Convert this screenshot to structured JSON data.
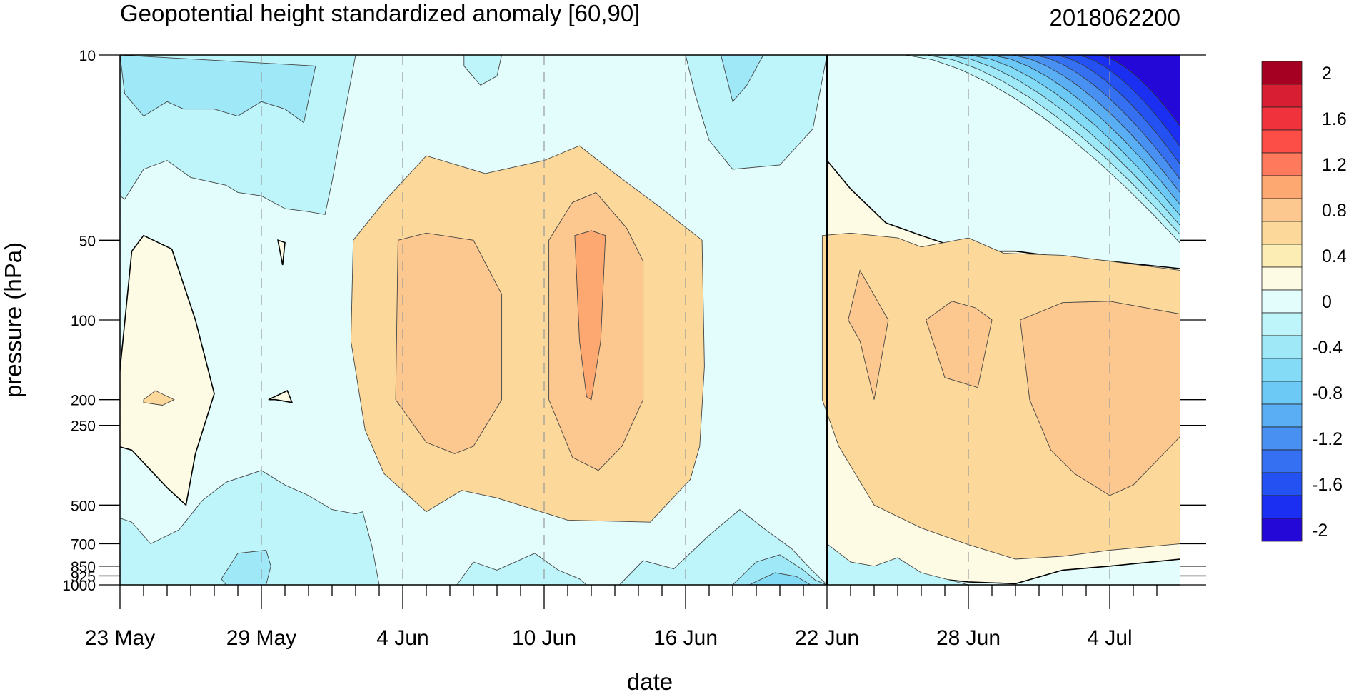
{
  "chart_data": {
    "type": "heatmap",
    "title": "Geopotential height standardized anomaly [60,90]",
    "datestamp": "2018062200",
    "xlabel": "date",
    "ylabel": "pressure (hPa)",
    "x_tick_labels": [
      "23 May",
      "29 May",
      "4 Jun",
      "10 Jun",
      "16 Jun",
      "22 Jun",
      "28 Jun",
      "4 Jul"
    ],
    "x_tick_days": [
      0,
      6,
      12,
      18,
      24,
      30,
      36,
      42
    ],
    "x_range_days": [
      0,
      45
    ],
    "y_ticks": [
      {
        "value": 10,
        "label": "10"
      },
      {
        "value": 50,
        "label": "50"
      },
      {
        "value": 100,
        "label": "100"
      },
      {
        "value": 200,
        "label": "200"
      },
      {
        "value": 250,
        "label": "250"
      },
      {
        "value": 500,
        "label": "500"
      },
      {
        "value": 700,
        "label": "700"
      },
      {
        "value": 850,
        "label": "850"
      },
      {
        "value": 925,
        "label": "925"
      },
      {
        "value": 1000,
        "label": "1000"
      }
    ],
    "y_range": [
      1000,
      10
    ],
    "y_scale": "log",
    "y_reversed": true,
    "analysis_line_day": 30,
    "colorbar": {
      "labels": [
        "2",
        "1.6",
        "1.2",
        "0.8",
        "0.4",
        "0",
        "-0.4",
        "-0.8",
        "-1.2",
        "-1.6",
        "-2"
      ],
      "colors_top_to_bottom": [
        "#a50021",
        "#d81e33",
        "#f0323c",
        "#fc4e47",
        "#ff7a5c",
        "#fda870",
        "#fcc88f",
        "#fcd99a",
        "#fcedb4",
        "#fdfbe3",
        "#e3fdfd",
        "#bdf5fb",
        "#9fe8f8",
        "#84dbf6",
        "#6cc8f4",
        "#5aaef3",
        "#4890f2",
        "#3570f2",
        "#2451f2",
        "#1a2ff2",
        "#2408d8"
      ]
    },
    "regions": [
      {
        "level": 0.4,
        "color": "#fcd99a",
        "points": [
          [
            9.9,
            50
          ],
          [
            11.3,
            35
          ],
          [
            13,
            24
          ],
          [
            15.5,
            28
          ],
          [
            18,
            25
          ],
          [
            19.5,
            22
          ],
          [
            21,
            28
          ],
          [
            23,
            38
          ],
          [
            24.7,
            50
          ],
          [
            24.8,
            150
          ],
          [
            24.6,
            300
          ],
          [
            24.2,
            400
          ],
          [
            22.5,
            580
          ],
          [
            19,
            570
          ],
          [
            16,
            470
          ],
          [
            14.5,
            440
          ],
          [
            13,
            530
          ],
          [
            11.2,
            380
          ],
          [
            10.4,
            260
          ],
          [
            9.8,
            120
          ]
        ]
      },
      {
        "level": 0.6,
        "color": "#fcc88f",
        "points": [
          [
            11.8,
            50
          ],
          [
            13,
            47
          ],
          [
            15,
            50
          ],
          [
            16.2,
            80
          ],
          [
            16.2,
            200
          ],
          [
            15,
            300
          ],
          [
            14.2,
            320
          ],
          [
            13,
            290
          ],
          [
            11.7,
            200
          ]
        ]
      },
      {
        "level": 0.6,
        "color": "#fcc88f",
        "points": [
          [
            18.2,
            50
          ],
          [
            19.2,
            36
          ],
          [
            20.2,
            33
          ],
          [
            21.5,
            45
          ],
          [
            22.2,
            60
          ],
          [
            22.2,
            200
          ],
          [
            21.3,
            300
          ],
          [
            20.3,
            370
          ],
          [
            19.2,
            330
          ],
          [
            18.2,
            200
          ]
        ]
      },
      {
        "level": 0.8,
        "color": "#fda870",
        "points": [
          [
            19.3,
            48
          ],
          [
            20,
            46
          ],
          [
            20.6,
            48
          ],
          [
            20.4,
            120
          ],
          [
            20,
            200
          ],
          [
            19.8,
            195
          ],
          [
            19.5,
            120
          ]
        ]
      },
      {
        "level": 0.2,
        "color": "#fdfbe3",
        "points": [
          [
            -0.1,
            190
          ],
          [
            0.5,
            55
          ],
          [
            1,
            48
          ],
          [
            2.2,
            54
          ],
          [
            3.2,
            100
          ],
          [
            4,
            190
          ],
          [
            3.2,
            320
          ],
          [
            2.8,
            500
          ],
          [
            2,
            430
          ],
          [
            0.5,
            310
          ],
          [
            -0.1,
            300
          ]
        ]
      },
      {
        "level": 0.4,
        "color": "#fcd99a",
        "points": [
          [
            1,
            200
          ],
          [
            1.5,
            185
          ],
          [
            2.3,
            200
          ],
          [
            1.8,
            210
          ],
          [
            1,
            205
          ]
        ]
      },
      {
        "level": 0.2,
        "color": "#fdfbe3",
        "points": [
          [
            6.3,
            200
          ],
          [
            7.1,
            185
          ],
          [
            7.3,
            205
          ],
          [
            6.6,
            200
          ]
        ]
      },
      {
        "level": 0.2,
        "color": "#fdfbe3",
        "points": [
          [
            6.7,
            50
          ],
          [
            7,
            51
          ],
          [
            6.9,
            62
          ]
        ]
      },
      {
        "level": 0.2,
        "color": "#fdfbe3",
        "points": [
          [
            30,
            25
          ],
          [
            31,
            32
          ],
          [
            32.5,
            43
          ],
          [
            34,
            48
          ],
          [
            36,
            55
          ],
          [
            38,
            55
          ],
          [
            40,
            58
          ],
          [
            42,
            60
          ],
          [
            45,
            64
          ],
          [
            45,
            800
          ],
          [
            42,
            850
          ],
          [
            40,
            880
          ],
          [
            38,
            990
          ],
          [
            36,
            975
          ],
          [
            34,
            935
          ],
          [
            32,
            960
          ],
          [
            31,
            920
          ],
          [
            30,
            1000
          ]
        ]
      },
      {
        "level": 0.4,
        "color": "#fcd99a",
        "points": [
          [
            29.8,
            48
          ],
          [
            31,
            47
          ],
          [
            33,
            49
          ],
          [
            34,
            53
          ],
          [
            36,
            49
          ],
          [
            37.5,
            56
          ],
          [
            40,
            57
          ],
          [
            42,
            60
          ],
          [
            45,
            65
          ],
          [
            45,
            700
          ],
          [
            42,
            740
          ],
          [
            40,
            780
          ],
          [
            38,
            800
          ],
          [
            36,
            705
          ],
          [
            34,
            610
          ],
          [
            32,
            500
          ],
          [
            30.5,
            300
          ],
          [
            29.8,
            200
          ]
        ]
      },
      {
        "level": 0.6,
        "color": "#fcc88f",
        "points": [
          [
            31.4,
            65
          ],
          [
            32.6,
            100
          ],
          [
            32,
            200
          ],
          [
            31.4,
            120
          ],
          [
            30.9,
            100
          ]
        ]
      },
      {
        "level": 0.6,
        "color": "#fcc88f",
        "points": [
          [
            34.2,
            100
          ],
          [
            35.3,
            85
          ],
          [
            36.3,
            90
          ],
          [
            37,
            100
          ],
          [
            36.4,
            180
          ],
          [
            35,
            165
          ]
        ]
      },
      {
        "level": 0.6,
        "color": "#fcc88f",
        "points": [
          [
            38.2,
            100
          ],
          [
            40,
            86
          ],
          [
            42,
            85
          ],
          [
            45,
            95
          ],
          [
            45,
            275
          ],
          [
            43,
            420
          ],
          [
            42,
            460
          ],
          [
            40.5,
            380
          ],
          [
            39.5,
            310
          ],
          [
            38.6,
            200
          ]
        ]
      },
      {
        "level": -0.2,
        "color": "#bdf5fb",
        "points": [
          [
            0,
            10
          ],
          [
            10,
            10
          ],
          [
            9,
            30
          ],
          [
            8.7,
            40
          ],
          [
            8,
            39
          ],
          [
            7,
            38
          ],
          [
            6,
            34
          ],
          [
            5,
            33
          ],
          [
            4.5,
            31
          ],
          [
            3,
            29
          ],
          [
            2,
            25
          ],
          [
            1,
            27
          ],
          [
            0.2,
            35
          ],
          [
            0,
            34
          ]
        ]
      },
      {
        "level": -0.4,
        "color": "#9fe8f8",
        "points": [
          [
            0,
            10
          ],
          [
            0.2,
            14
          ],
          [
            1,
            17
          ],
          [
            2,
            15
          ],
          [
            2.7,
            16
          ],
          [
            4,
            16
          ],
          [
            5,
            17
          ],
          [
            6,
            15
          ],
          [
            7,
            16
          ],
          [
            7.8,
            18
          ],
          [
            8.3,
            11
          ],
          [
            0,
            10
          ]
        ]
      },
      {
        "level": -0.2,
        "color": "#bdf5fb",
        "points": [
          [
            14.6,
            10
          ],
          [
            16.2,
            10
          ],
          [
            16,
            12
          ],
          [
            15.3,
            13
          ],
          [
            14.6,
            11
          ]
        ]
      },
      {
        "level": -0.2,
        "color": "#bdf5fb",
        "points": [
          [
            24,
            10
          ],
          [
            30,
            10
          ],
          [
            29.4,
            19
          ],
          [
            28,
            26
          ],
          [
            26,
            27
          ],
          [
            25,
            21
          ],
          [
            24.4,
            14
          ]
        ]
      },
      {
        "level": -0.4,
        "color": "#9fe8f8",
        "points": [
          [
            25.5,
            10
          ],
          [
            27.3,
            10
          ],
          [
            26.6,
            13
          ],
          [
            26,
            15
          ]
        ]
      },
      {
        "level": -0.2,
        "color": "#bdf5fb",
        "points": [
          [
            0,
            1000
          ],
          [
            0,
            560
          ],
          [
            0.5,
            580
          ],
          [
            1.3,
            700
          ],
          [
            2.5,
            620
          ],
          [
            3.5,
            480
          ],
          [
            4.5,
            410
          ],
          [
            6,
            370
          ],
          [
            7,
            420
          ],
          [
            8,
            460
          ],
          [
            9,
            520
          ],
          [
            10,
            540
          ],
          [
            10.3,
            530
          ],
          [
            10.7,
            720
          ],
          [
            11,
            1000
          ]
        ]
      },
      {
        "level": -0.4,
        "color": "#9fe8f8",
        "points": [
          [
            4.3,
            950
          ],
          [
            5,
            760
          ],
          [
            6.2,
            740
          ],
          [
            6.4,
            850
          ],
          [
            6.2,
            1000
          ],
          [
            4.5,
            1000
          ]
        ]
      },
      {
        "level": -0.2,
        "color": "#bdf5fb",
        "points": [
          [
            14.3,
            1000
          ],
          [
            15,
            820
          ],
          [
            16,
            880
          ],
          [
            17.6,
            760
          ],
          [
            18.6,
            880
          ],
          [
            19.5,
            950
          ],
          [
            19.8,
            1000
          ]
        ]
      },
      {
        "level": -0.2,
        "color": "#bdf5fb",
        "points": [
          [
            21.2,
            1000
          ],
          [
            22.2,
            810
          ],
          [
            23.5,
            870
          ],
          [
            25,
            650
          ],
          [
            26.3,
            520
          ],
          [
            27.4,
            620
          ],
          [
            28.5,
            730
          ],
          [
            29.3,
            870
          ],
          [
            30,
            1000
          ]
        ]
      },
      {
        "level": -0.4,
        "color": "#9fe8f8",
        "points": [
          [
            26,
            1000
          ],
          [
            27,
            820
          ],
          [
            28,
            770
          ],
          [
            29,
            880
          ],
          [
            29.5,
            960
          ],
          [
            30,
            1000
          ]
        ]
      },
      {
        "level": -0.6,
        "color": "#84dbf6",
        "points": [
          [
            26.7,
            1000
          ],
          [
            27.8,
            900
          ],
          [
            28.7,
            930
          ],
          [
            29.3,
            1000
          ]
        ]
      },
      {
        "level": -0.2,
        "color": "#bdf5fb",
        "points": [
          [
            30,
            1000
          ],
          [
            30,
            700
          ],
          [
            31,
            820
          ],
          [
            32,
            850
          ],
          [
            33,
            790
          ],
          [
            34,
            900
          ],
          [
            36,
            1000
          ]
        ]
      }
    ],
    "strat_band_colors": [
      "#e3fdfd",
      "#bdf5fb",
      "#9fe8f8",
      "#84dbf6",
      "#6cc8f4",
      "#5aaef3",
      "#4890f2",
      "#3570f2",
      "#2451f2",
      "#1a2ff2",
      "#2408d8"
    ],
    "strat_band_levels": [
      0,
      -0.2,
      -0.4,
      -0.6,
      -0.8,
      -1.0,
      -1.2,
      -1.4,
      -1.6,
      -1.8,
      -2.0
    ]
  }
}
